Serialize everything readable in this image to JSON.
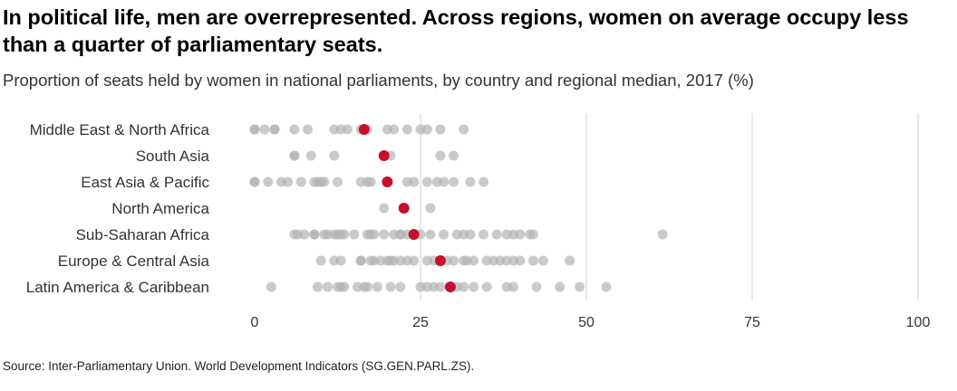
{
  "title": "In political life, men are overrepresented. Across regions, women on average occupy less than a quarter of parliamentary seats.",
  "subtitle": "Proportion of seats held by women in national parliaments, by country and regional median, 2017 (%)",
  "source": "Source: Inter-Parliamentary Union. World Development Indicators (SG.GEN.PARL.ZS).",
  "colors": {
    "country_dot": "#b4b4b4",
    "median_dot": "#c8102e",
    "grid": "#e2e2e2",
    "text": "#333333"
  },
  "chart_data": {
    "type": "scatter",
    "xlim": [
      0,
      100
    ],
    "xticks": [
      "0",
      "25",
      "50",
      "75",
      "100"
    ],
    "grid": "vertical",
    "categories": [
      "Middle East & North Africa",
      "South Asia",
      "East Asia & Pacific",
      "North America",
      "Sub-Saharan Africa",
      "Europe & Central Asia",
      "Latin America & Caribbean"
    ],
    "series": [
      {
        "values": [
          [
            0,
            0,
            1.5,
            3,
            3,
            6,
            8,
            12,
            13,
            14,
            16,
            17,
            20,
            21,
            23,
            25,
            26,
            28,
            31.5
          ],
          [
            6,
            6,
            8.5,
            12,
            20.5,
            28,
            30
          ],
          [
            0,
            0,
            2,
            4,
            5,
            7,
            9,
            9.5,
            10,
            10.5,
            12.5,
            16,
            17,
            17.5,
            20,
            23,
            24,
            26,
            27.5,
            28.5,
            30,
            32.5,
            34.5
          ],
          [
            19.5,
            26.5
          ],
          [
            6,
            6.5,
            7.5,
            9,
            9,
            10.5,
            11,
            12,
            12.5,
            13,
            13.5,
            15,
            17,
            17.5,
            18,
            19.5,
            21,
            22,
            22,
            23,
            24,
            25,
            26.5,
            28.5,
            30.5,
            31.5,
            32.5,
            34.5,
            36.5,
            38,
            39,
            40,
            41.5,
            42,
            61.5
          ],
          [
            10,
            12,
            13,
            16,
            16,
            17.5,
            18,
            19,
            20,
            20.5,
            21,
            22,
            23,
            24,
            26,
            27,
            29,
            30,
            31.5,
            32,
            33,
            35,
            36,
            37,
            38,
            39,
            40,
            42,
            43.5,
            47.5
          ],
          [
            2.5,
            9.5,
            11,
            12.5,
            13,
            13.5,
            15.5,
            16.5,
            17,
            18.5,
            20.5,
            22,
            25,
            26,
            27,
            28,
            30.5,
            31.5,
            33,
            35,
            38,
            39,
            42.5,
            46,
            49,
            53
          ]
        ]
      },
      {
        "values": [
          16.5,
          19.5,
          20,
          22.5,
          24,
          28,
          29.5
        ]
      }
    ]
  }
}
